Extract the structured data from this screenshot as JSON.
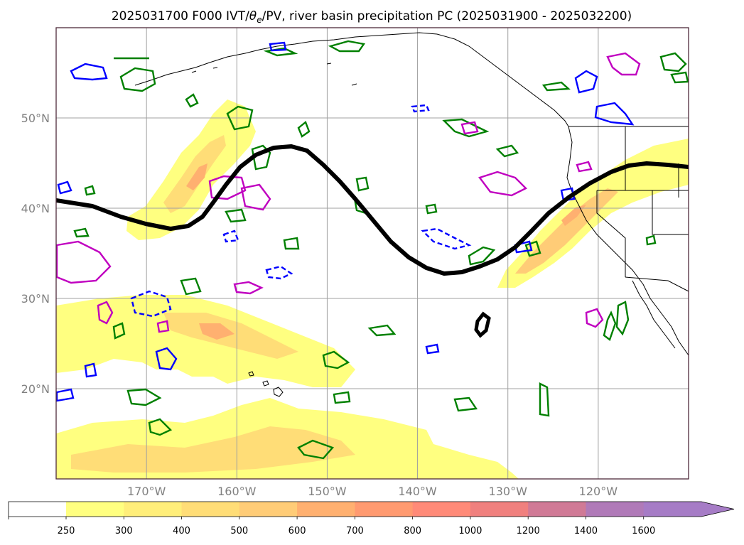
{
  "title": {
    "prefix": "2025031700 F000 IVT/",
    "theta_symbol": "θ",
    "theta_sub": "e",
    "suffix": "/PV, river basin precipitation PC (2025031900 - 2025032200)"
  },
  "map": {
    "projection": "lat-lon",
    "lon_range": [
      -180,
      -110
    ],
    "lat_range": [
      10,
      60
    ],
    "grid": true,
    "lat_ticks": [
      {
        "lat": 50,
        "label": "50°N"
      },
      {
        "lat": 40,
        "label": "40°N"
      },
      {
        "lat": 30,
        "label": "30°N"
      },
      {
        "lat": 20,
        "label": "20°N"
      }
    ],
    "lon_ticks": [
      {
        "lon": -170,
        "label": "170°W"
      },
      {
        "lon": -160,
        "label": "160°W"
      },
      {
        "lon": -150,
        "label": "150°W"
      },
      {
        "lon": -140,
        "label": "140°W"
      },
      {
        "lon": -130,
        "label": "130°W"
      },
      {
        "lon": -120,
        "label": "120°W"
      }
    ],
    "pv_contour_color": "#000000",
    "contour_colors": {
      "green": "#008000",
      "blue": "#0000ff",
      "magenta": "#c000c0"
    }
  },
  "colorbar": {
    "levels": [
      "250",
      "300",
      "400",
      "500",
      "600",
      "700",
      "800",
      "1000",
      "1200",
      "1400",
      "1600"
    ],
    "colors": [
      "#ffff80",
      "#ffee7a",
      "#ffdd77",
      "#ffcc77",
      "#ffb070",
      "#ff9a70",
      "#ff8a78",
      "#f0807e",
      "#d07a96",
      "#b07ab8",
      "#a67cc6"
    ],
    "extend": "max"
  }
}
